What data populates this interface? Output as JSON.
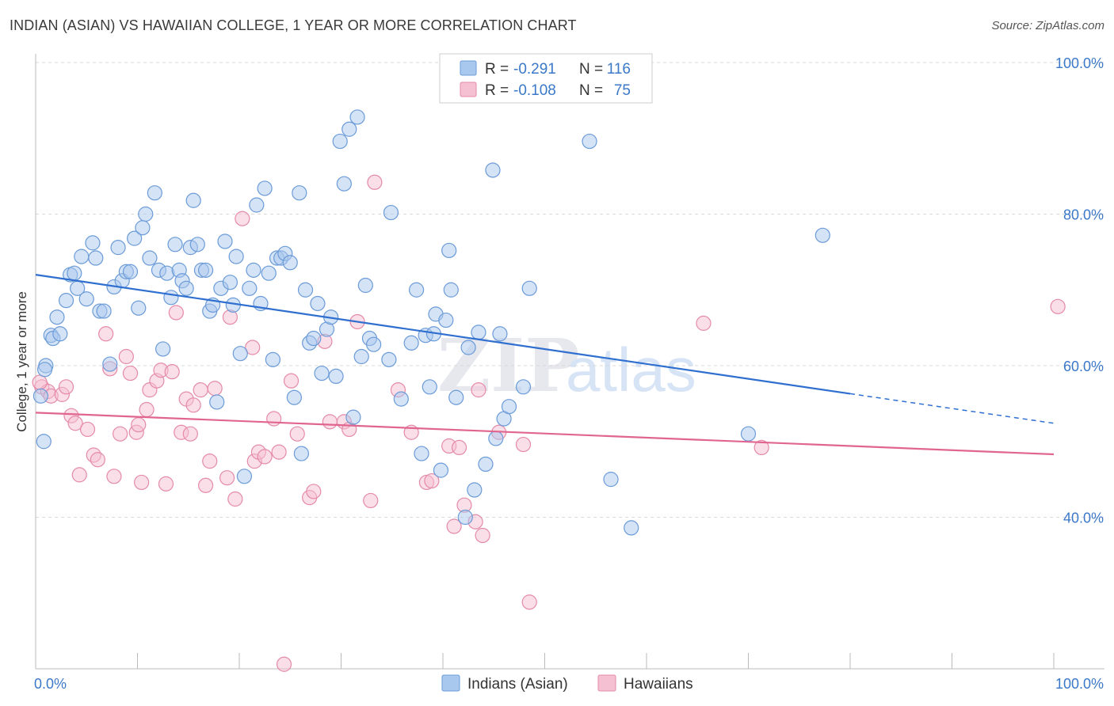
{
  "header": {
    "title": "INDIAN (ASIAN) VS HAWAIIAN COLLEGE, 1 YEAR OR MORE CORRELATION CHART",
    "source": "Source: ZipAtlas.com"
  },
  "watermark": {
    "zip": "ZIP",
    "atlas": "atlas"
  },
  "legend_top": [
    {
      "r_label": "R =",
      "r_value": "-0.291",
      "n_label": "N =",
      "n_value": "116"
    },
    {
      "r_label": "R =",
      "r_value": "-0.108",
      "n_label": "N =",
      "n_value": "75"
    }
  ],
  "legend_bottom": [
    "Indians (Asian)",
    "Hawaiians"
  ],
  "colors": {
    "blue_fill": "#a9c8ee",
    "blue_stroke": "#6b9bd8",
    "blue_line": "#2f6fcf",
    "pink_fill": "#f5c0d2",
    "pink_stroke": "#e58aa8",
    "pink_line": "#e06690",
    "tick_label": "#3b78c8",
    "grid": "#d9d9d9"
  },
  "chart_data": {
    "type": "scatter",
    "title": "INDIAN (ASIAN) VS HAWAIIAN COLLEGE, 1 YEAR OR MORE CORRELATION CHART",
    "xlabel": "",
    "ylabel": "College, 1 year or more",
    "xlim": [
      0,
      100
    ],
    "ylim": [
      20,
      100
    ],
    "x_tick_labels": [
      "0.0%",
      "100.0%"
    ],
    "y_ticks": [
      40,
      60,
      80,
      100
    ],
    "y_tick_labels": [
      "40.0%",
      "60.0%",
      "80.0%",
      "100.0%"
    ],
    "grid": true,
    "legend_position": "top-center",
    "series": [
      {
        "name": "Indians (Asian)",
        "r": -0.291,
        "n": 116,
        "trend": {
          "x": [
            0,
            80
          ],
          "y": [
            72.0,
            56.3
          ],
          "dashed_x": [
            80,
            100
          ],
          "dashed_y": [
            56.3,
            52.4
          ]
        },
        "points": [
          [
            0.5,
            56
          ],
          [
            0.8,
            50
          ],
          [
            1,
            60
          ],
          [
            1.5,
            64
          ],
          [
            1.7,
            63.6
          ],
          [
            2.1,
            66.4
          ],
          [
            2.4,
            64.2
          ],
          [
            3,
            68.6
          ],
          [
            3.4,
            72
          ],
          [
            3.8,
            72.2
          ],
          [
            4.1,
            70.2
          ],
          [
            4.5,
            74.4
          ],
          [
            5,
            68.8
          ],
          [
            5.6,
            76.2
          ],
          [
            5.9,
            74.2
          ],
          [
            6.3,
            67.2
          ],
          [
            6.7,
            67.2
          ],
          [
            7.3,
            60.2
          ],
          [
            7.7,
            70.4
          ],
          [
            8.1,
            75.6
          ],
          [
            8.5,
            71.2
          ],
          [
            8.9,
            72.4
          ],
          [
            9.3,
            72.4
          ],
          [
            9.7,
            76.8
          ],
          [
            10.1,
            67.6
          ],
          [
            10.5,
            78.2
          ],
          [
            10.8,
            80
          ],
          [
            11.2,
            74.2
          ],
          [
            11.7,
            82.8
          ],
          [
            12.1,
            72.6
          ],
          [
            12.5,
            62.2
          ],
          [
            12.9,
            72.2
          ],
          [
            13.3,
            69
          ],
          [
            13.7,
            76
          ],
          [
            14.1,
            72.6
          ],
          [
            14.4,
            71.2
          ],
          [
            14.8,
            70.2
          ],
          [
            15.2,
            75.6
          ],
          [
            15.5,
            81.8
          ],
          [
            15.9,
            76
          ],
          [
            16.3,
            72.6
          ],
          [
            16.7,
            72.6
          ],
          [
            17.1,
            67.2
          ],
          [
            17.4,
            68
          ],
          [
            17.8,
            55.2
          ],
          [
            18.2,
            70.2
          ],
          [
            18.6,
            76.4
          ],
          [
            19.1,
            71
          ],
          [
            19.4,
            68
          ],
          [
            19.7,
            74.4
          ],
          [
            20.1,
            61.6
          ],
          [
            20.5,
            45.4
          ],
          [
            21,
            70.2
          ],
          [
            21.4,
            72.6
          ],
          [
            21.7,
            81.2
          ],
          [
            22.1,
            68.2
          ],
          [
            22.5,
            83.4
          ],
          [
            22.9,
            72.2
          ],
          [
            23.3,
            60.8
          ],
          [
            23.7,
            74.2
          ],
          [
            24.1,
            74.2
          ],
          [
            24.5,
            74.8
          ],
          [
            25,
            73.6
          ],
          [
            25.4,
            55.8
          ],
          [
            25.9,
            82.8
          ],
          [
            26.1,
            48.4
          ],
          [
            26.5,
            70
          ],
          [
            26.9,
            63
          ],
          [
            27.3,
            63.6
          ],
          [
            27.7,
            68.2
          ],
          [
            28.1,
            59
          ],
          [
            28.6,
            64.8
          ],
          [
            29,
            66.4
          ],
          [
            29.5,
            58.6
          ],
          [
            29.9,
            89.6
          ],
          [
            30.3,
            84
          ],
          [
            30.8,
            91.2
          ],
          [
            31.2,
            53.2
          ],
          [
            31.6,
            92.8
          ],
          [
            32,
            61.2
          ],
          [
            32.4,
            70.6
          ],
          [
            32.8,
            63.6
          ],
          [
            33.2,
            62.8
          ],
          [
            34.7,
            60.8
          ],
          [
            34.9,
            80.2
          ],
          [
            35.9,
            55.6
          ],
          [
            36.9,
            63
          ],
          [
            37.4,
            70
          ],
          [
            37.9,
            48.4
          ],
          [
            38.3,
            64
          ],
          [
            38.7,
            57.2
          ],
          [
            39.1,
            64.2
          ],
          [
            39.3,
            66.8
          ],
          [
            39.8,
            46.2
          ],
          [
            40.3,
            66
          ],
          [
            40.6,
            75.2
          ],
          [
            40.8,
            70
          ],
          [
            41.3,
            55.8
          ],
          [
            42.2,
            40
          ],
          [
            42.5,
            62.4
          ],
          [
            43.1,
            43.6
          ],
          [
            43.5,
            64.4
          ],
          [
            44.2,
            47
          ],
          [
            44.9,
            85.8
          ],
          [
            45.2,
            50.4
          ],
          [
            45.6,
            64.2
          ],
          [
            46,
            53
          ],
          [
            46.5,
            54.6
          ],
          [
            47.9,
            57.2
          ],
          [
            48.5,
            70.2
          ],
          [
            54.4,
            89.6
          ],
          [
            56.5,
            45
          ],
          [
            58.5,
            38.6
          ],
          [
            70,
            51
          ],
          [
            77.3,
            77.2
          ],
          [
            0.9,
            59.5
          ]
        ]
      },
      {
        "name": "Hawaiians",
        "r": -0.108,
        "n": 75,
        "trend": {
          "x": [
            0,
            100
          ],
          "y": [
            53.8,
            48.3
          ]
        },
        "points": [
          [
            0.6,
            57.2
          ],
          [
            1.2,
            56.6
          ],
          [
            1.5,
            56
          ],
          [
            2.6,
            56.2
          ],
          [
            3,
            57.2
          ],
          [
            3.5,
            53.4
          ],
          [
            3.9,
            52.4
          ],
          [
            4.3,
            45.6
          ],
          [
            5.1,
            51.6
          ],
          [
            5.7,
            48.2
          ],
          [
            6.1,
            47.6
          ],
          [
            6.9,
            64.2
          ],
          [
            7.3,
            59.6
          ],
          [
            7.7,
            45.4
          ],
          [
            8.3,
            51
          ],
          [
            8.9,
            61.2
          ],
          [
            9.3,
            59
          ],
          [
            9.9,
            51.2
          ],
          [
            10.4,
            44.6
          ],
          [
            10.9,
            54.2
          ],
          [
            11.2,
            56.8
          ],
          [
            11.9,
            58
          ],
          [
            12.3,
            59.4
          ],
          [
            12.8,
            44.4
          ],
          [
            13.4,
            59.2
          ],
          [
            13.8,
            67
          ],
          [
            14.3,
            51.2
          ],
          [
            14.8,
            55.6
          ],
          [
            15.2,
            51
          ],
          [
            15.5,
            54.8
          ],
          [
            16.2,
            56.8
          ],
          [
            16.7,
            44.2
          ],
          [
            17.1,
            47.4
          ],
          [
            17.6,
            57
          ],
          [
            18.8,
            45.2
          ],
          [
            19.1,
            66.4
          ],
          [
            19.6,
            42.4
          ],
          [
            20.3,
            79.4
          ],
          [
            21.3,
            62.4
          ],
          [
            21.5,
            47.4
          ],
          [
            21.9,
            48.6
          ],
          [
            22.5,
            48
          ],
          [
            23.4,
            53
          ],
          [
            23.9,
            48.6
          ],
          [
            24.4,
            20.6
          ],
          [
            25.1,
            58
          ],
          [
            25.7,
            51
          ],
          [
            26.9,
            42.6
          ],
          [
            27.3,
            43.4
          ],
          [
            28.4,
            63.2
          ],
          [
            28.9,
            52.6
          ],
          [
            30.3,
            52.6
          ],
          [
            30.8,
            51.6
          ],
          [
            31.6,
            65.8
          ],
          [
            32.9,
            42.2
          ],
          [
            33.3,
            84.2
          ],
          [
            35.6,
            56.8
          ],
          [
            36.9,
            51.2
          ],
          [
            38.4,
            44.6
          ],
          [
            38.9,
            44.8
          ],
          [
            40.6,
            49.4
          ],
          [
            41.1,
            38.8
          ],
          [
            41.6,
            49.2
          ],
          [
            42.1,
            41.6
          ],
          [
            43.2,
            39.4
          ],
          [
            43.5,
            56.8
          ],
          [
            43.9,
            37.6
          ],
          [
            45.5,
            51.2
          ],
          [
            47.9,
            49.6
          ],
          [
            48.5,
            28.8
          ],
          [
            65.6,
            65.6
          ],
          [
            71.3,
            49.2
          ],
          [
            100.4,
            67.8
          ],
          [
            0.4,
            57.8
          ],
          [
            10.1,
            52.2
          ]
        ]
      }
    ]
  }
}
